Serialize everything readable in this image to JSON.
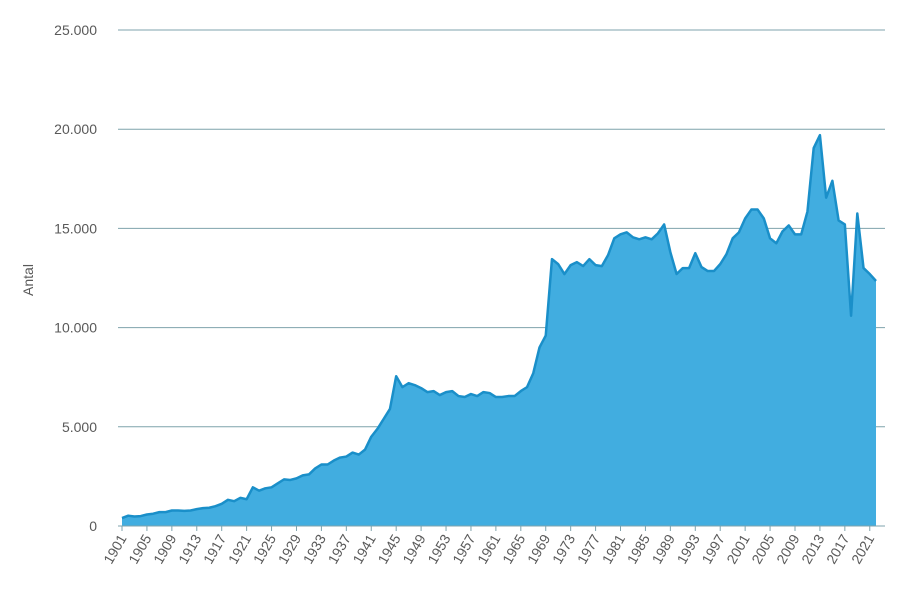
{
  "chart_data": {
    "type": "area",
    "title": "",
    "xlabel": "",
    "ylabel": "Antal",
    "x_start": 1901,
    "x_end": 2022,
    "xticks": [
      "1901",
      "1905",
      "1909",
      "1913",
      "1917",
      "1921",
      "1925",
      "1929",
      "1933",
      "1937",
      "1941",
      "1945",
      "1949",
      "1953",
      "1957",
      "1961",
      "1965",
      "1969",
      "1973",
      "1977",
      "1981",
      "1985",
      "1989",
      "1993",
      "1997",
      "2001",
      "2005",
      "2009",
      "2013",
      "2017",
      "2021"
    ],
    "yticks": [
      {
        "value": 0,
        "label": "0"
      },
      {
        "value": 5000,
        "label": "5.000"
      },
      {
        "value": 10000,
        "label": "10.000"
      },
      {
        "value": 15000,
        "label": "15.000"
      },
      {
        "value": 20000,
        "label": "20.000"
      },
      {
        "value": 25000,
        "label": "25.000"
      }
    ],
    "ylim": [
      0,
      25000
    ],
    "grid": true,
    "fill_color": "#41ade0",
    "line_color": "#1a8fc9",
    "grid_color": "#7fa3ac",
    "values": [
      400,
      520,
      480,
      500,
      580,
      620,
      700,
      700,
      780,
      780,
      760,
      780,
      850,
      900,
      920,
      1000,
      1120,
      1320,
      1250,
      1420,
      1350,
      1950,
      1780,
      1900,
      1950,
      2150,
      2350,
      2320,
      2400,
      2550,
      2600,
      2900,
      3100,
      3100,
      3300,
      3450,
      3500,
      3700,
      3600,
      3850,
      4500,
      4900,
      5400,
      5900,
      7550,
      7000,
      7200,
      7100,
      6950,
      6750,
      6800,
      6600,
      6750,
      6800,
      6550,
      6500,
      6650,
      6550,
      6750,
      6700,
      6500,
      6500,
      6550,
      6550,
      6800,
      7000,
      7700,
      9000,
      9600,
      13450,
      13200,
      12700,
      13150,
      13300,
      13100,
      13450,
      13150,
      13100,
      13650,
      14500,
      14700,
      14800,
      14550,
      14450,
      14550,
      14450,
      14750,
      15200,
      13800,
      12700,
      13000,
      13000,
      13750,
      13050,
      12850,
      12850,
      13200,
      13700,
      14500,
      14800,
      15500,
      15950,
      15950,
      15500,
      14500,
      14250,
      14850,
      15150,
      14700,
      14700,
      15850,
      19050,
      19700,
      16550,
      17400,
      15400,
      15200,
      10600,
      15750,
      13000,
      12700,
      12350
    ]
  }
}
